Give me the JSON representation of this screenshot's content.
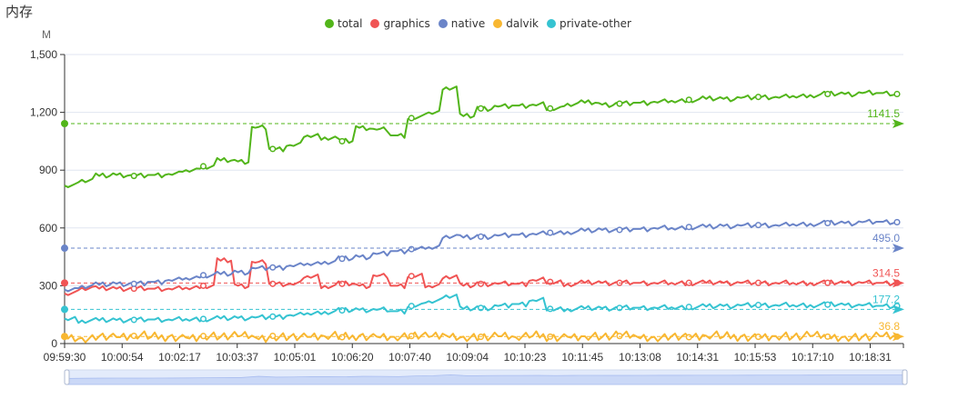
{
  "title": "内存",
  "chart_data": {
    "type": "line",
    "title": "内存",
    "ylabel": "M",
    "xlabel": "",
    "ylim": [
      0,
      1500
    ],
    "yticks": [
      0,
      300,
      600,
      900,
      1200,
      1500
    ],
    "ytick_labels": [
      "0",
      "300",
      "600",
      "900",
      "1,200",
      "1,500"
    ],
    "xtick_labels": [
      "09:59:30",
      "10:00:54",
      "10:02:17",
      "10:03:37",
      "10:05:01",
      "10:06:20",
      "10:07:40",
      "10:09:04",
      "10:10:23",
      "10:11:45",
      "10:13:08",
      "10:14:31",
      "10:15:53",
      "10:17:10",
      "10:18:31"
    ],
    "x_seconds_from_start_step": 25,
    "grid": true,
    "legend_position": "top-center",
    "series": [
      {
        "name": "total",
        "color": "#52b51a",
        "average": 1141.5,
        "average_label": "1141.5",
        "values": [
          820,
          850,
          870,
          875,
          870,
          875,
          880,
          900,
          920,
          950,
          945,
          1120,
          1010,
          1030,
          1080,
          1070,
          1050,
          1120,
          1110,
          1080,
          1170,
          1200,
          1330,
          1180,
          1220,
          1230,
          1235,
          1240,
          1220,
          1245,
          1250,
          1240,
          1245,
          1250,
          1255,
          1260,
          1265,
          1270,
          1270,
          1275,
          1280,
          1280,
          1285,
          1290,
          1295,
          1295,
          1300,
          1300,
          1295
        ]
      },
      {
        "name": "graphics",
        "color": "#f05454",
        "average": 314.5,
        "average_label": "314.5",
        "values": [
          260,
          290,
          285,
          285,
          285,
          285,
          285,
          290,
          300,
          430,
          300,
          420,
          310,
          310,
          350,
          300,
          310,
          300,
          350,
          300,
          350,
          300,
          350,
          300,
          310,
          310,
          310,
          330,
          320,
          310,
          315,
          315,
          315,
          315,
          315,
          315,
          315,
          315,
          315,
          315,
          315,
          315,
          315,
          315,
          315,
          315,
          315,
          315,
          315
        ]
      },
      {
        "name": "native",
        "color": "#6a84c8",
        "average": 495.0,
        "average_label": "495.0",
        "values": [
          280,
          300,
          305,
          310,
          310,
          320,
          330,
          340,
          355,
          360,
          370,
          390,
          395,
          405,
          415,
          425,
          440,
          450,
          465,
          480,
          490,
          500,
          560,
          550,
          555,
          560,
          565,
          570,
          575,
          580,
          585,
          590,
          590,
          595,
          600,
          600,
          605,
          605,
          610,
          612,
          615,
          615,
          620,
          622,
          625,
          625,
          630,
          632,
          630
        ]
      },
      {
        "name": "dalvik",
        "color": "#f8b731",
        "average": 36.8,
        "average_label": "36.8",
        "values": [
          35,
          30,
          38,
          33,
          40,
          34,
          36,
          31,
          39,
          35,
          37,
          32,
          40,
          36,
          34,
          38,
          33,
          41,
          36,
          35,
          39,
          34,
          42,
          36,
          35,
          38,
          33,
          40,
          36,
          35,
          38,
          34,
          39,
          36,
          35,
          38,
          33,
          40,
          36,
          37,
          35,
          39,
          34,
          38,
          36,
          37,
          35,
          39,
          36
        ]
      },
      {
        "name": "private-other",
        "color": "#35c3d1",
        "average": 177.2,
        "average_label": "177.2",
        "values": [
          130,
          120,
          120,
          122,
          123,
          125,
          125,
          127,
          128,
          130,
          133,
          135,
          140,
          148,
          158,
          165,
          172,
          175,
          175,
          168,
          195,
          220,
          250,
          180,
          185,
          195,
          205,
          225,
          180,
          180,
          182,
          183,
          185,
          186,
          187,
          188,
          190,
          192,
          195,
          198,
          200,
          200,
          200,
          200,
          202,
          200,
          198,
          196,
          195
        ]
      }
    ]
  }
}
